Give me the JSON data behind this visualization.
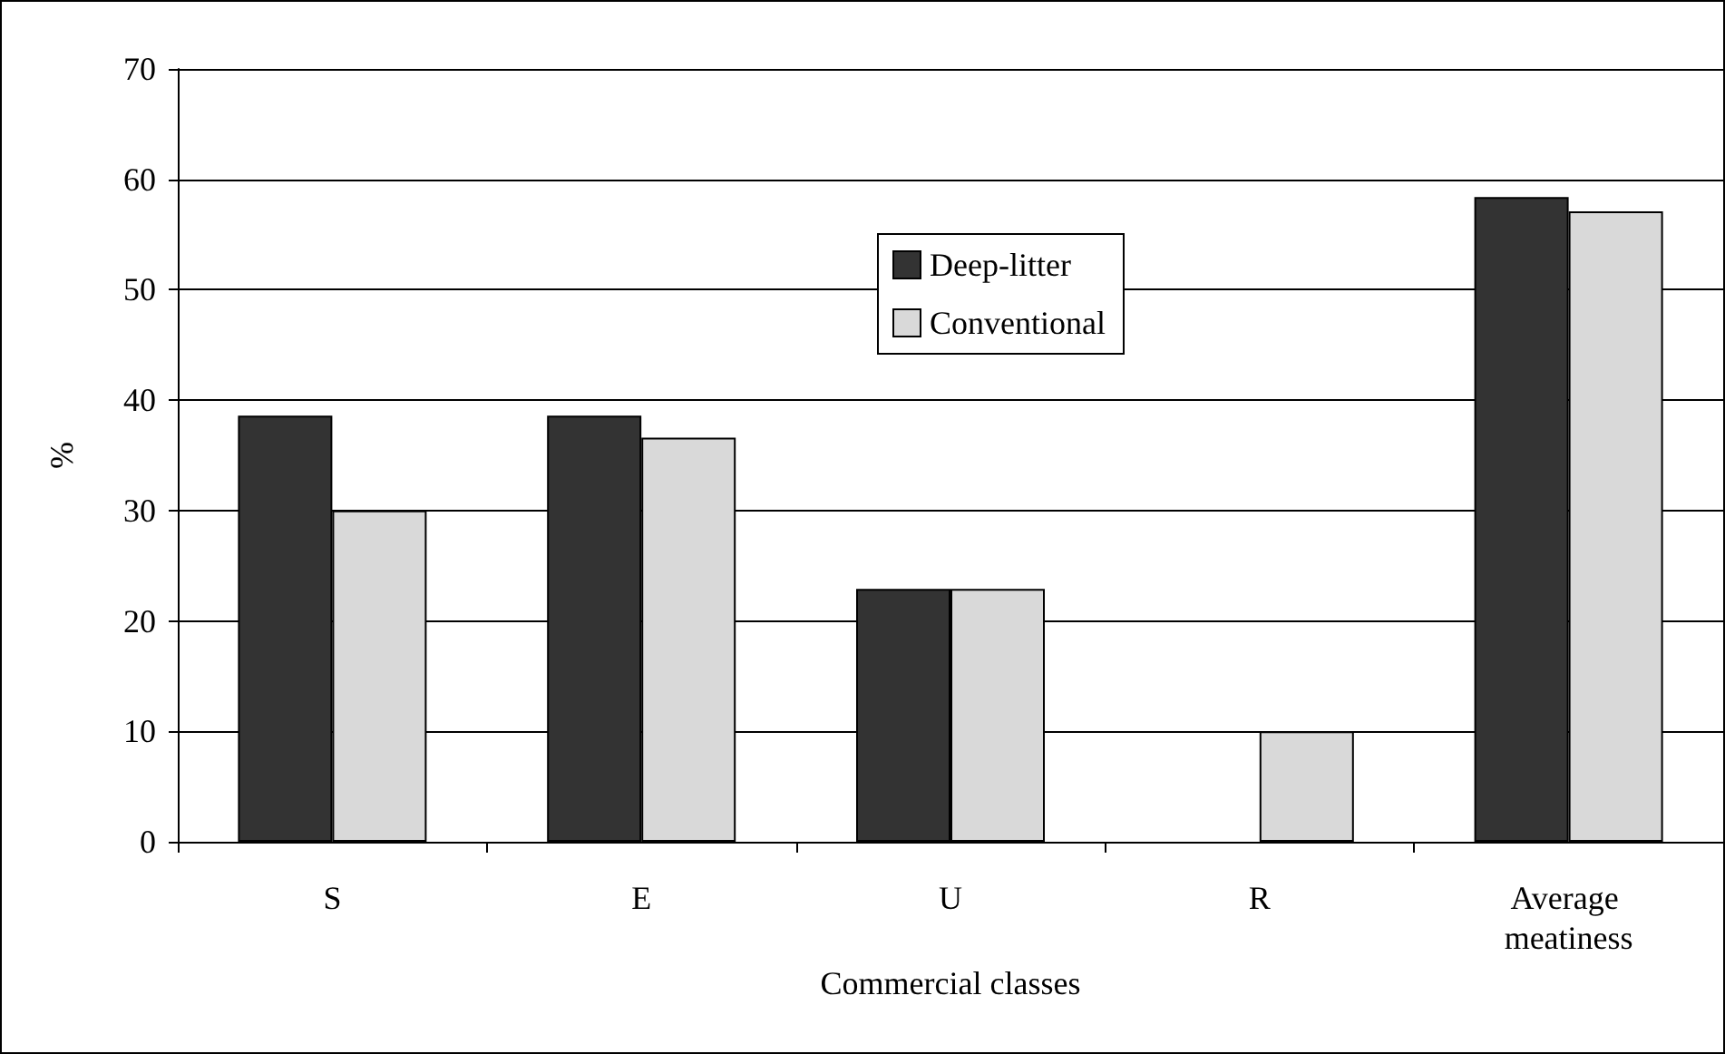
{
  "chart_data": {
    "type": "bar",
    "xlabel": "Commercial classes",
    "ylabel": "%",
    "categories": [
      "S",
      "E",
      "U",
      "R",
      "Average meatiness"
    ],
    "series": [
      {
        "name": "Deep-litter",
        "color": "#333333",
        "values": [
          38.6,
          38.6,
          22.9,
          null,
          58.4
        ]
      },
      {
        "name": "Conventional",
        "color": "#d9d9d9",
        "values": [
          30,
          36.6,
          22.9,
          10,
          57.1
        ]
      }
    ],
    "ylim": [
      0,
      70
    ],
    "yticks": [
      0,
      10,
      20,
      30,
      40,
      50,
      60,
      70
    ],
    "grid": "y",
    "legend": "top"
  }
}
